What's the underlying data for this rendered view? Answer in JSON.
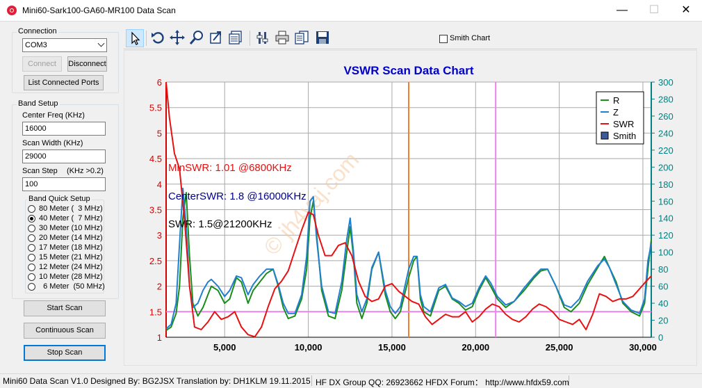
{
  "window": {
    "title": "Mini60-Sark100-GA60-MR100 Data Scan",
    "min_glyph": "—",
    "max_glyph": "☐",
    "close_glyph": "✕"
  },
  "connection": {
    "legend": "Connection",
    "port": "COM3",
    "connect_label": "Connect",
    "disconnect_label": "Disconnect",
    "list_ports_label": "List Connected Ports"
  },
  "band_setup": {
    "legend": "Band Setup",
    "center_freq_label": "Center Freq  (KHz)",
    "center_freq_value": "16000",
    "scan_width_label": "Scan Width   (KHz)",
    "scan_width_value": "29000",
    "scan_step_label": "Scan Step",
    "scan_step_hint": "(KHz >0.2)",
    "scan_step_value": "100",
    "quick_legend": "Band Quick Setup",
    "bands": [
      {
        "label": "80 Meter (  3 MHz)",
        "checked": false
      },
      {
        "label": "40 Meter (  7 MHz)",
        "checked": true
      },
      {
        "label": "30 Meter (10 MHz)",
        "checked": false
      },
      {
        "label": "20 Meter (14 MHz)",
        "checked": false
      },
      {
        "label": "17 Meter (18 MHz)",
        "checked": false
      },
      {
        "label": "15 Meter (21 MHz)",
        "checked": false
      },
      {
        "label": "12 Meter (24 MHz)",
        "checked": false
      },
      {
        "label": "10 Meter (28 MHz)",
        "checked": false
      },
      {
        "label": "  6 Meter  (50 MHz)",
        "checked": false
      }
    ]
  },
  "actions": {
    "start_scan": "Start Scan",
    "continuous_scan": "Continuous Scan",
    "stop_scan": "Stop Scan"
  },
  "toolbar": {
    "smith_chart_label": "Smith Chart",
    "tools": [
      "pointer-icon",
      "undo-icon",
      "pan-icon",
      "zoom-icon",
      "export-icon",
      "data-table-icon",
      "settings-icon",
      "print-icon",
      "copy-icon",
      "save-icon"
    ]
  },
  "colors": {
    "r": "#1a8c1a",
    "z": "#1f7fd0",
    "swr": "#e81010",
    "title": "#0000c8",
    "left_axis": "#d40000",
    "right_axis": "#008080",
    "orange_marker": "#f08030",
    "violet_marker": "#ee82ee",
    "watermark": "#f5c9a0"
  },
  "chart_data": {
    "type": "line",
    "title": "VSWR Scan Data Chart",
    "watermark": "© jh4vaj.com",
    "x_ticks": [
      "5,000",
      "10,000",
      "15,000",
      "20,000",
      "25,000",
      "30,000"
    ],
    "x_tick_values": [
      5000,
      10000,
      15000,
      20000,
      25000,
      30000
    ],
    "xlim": [
      1500,
      30500
    ],
    "y_left_ticks": [
      "1",
      "1.5",
      "2",
      "2.5",
      "3",
      "3.5",
      "4",
      "4.5",
      "5",
      "5.5",
      "6"
    ],
    "y_left_lim": [
      1,
      6
    ],
    "y_right_ticks": [
      "0",
      "20",
      "40",
      "60",
      "80",
      "100",
      "120",
      "140",
      "160",
      "180",
      "200",
      "220",
      "240",
      "260",
      "280",
      "300"
    ],
    "y_right_lim": [
      0,
      300
    ],
    "annotations": [
      {
        "text": "MinSWR: 1.01 @6800KHz",
        "color": "#e81010"
      },
      {
        "text": "CenterSWR: 1.8 @16000KHz",
        "color": "#00008b"
      },
      {
        "text": "SWR: 1.5@21200KHz",
        "color": "#000000"
      }
    ],
    "markers": {
      "center_freq_khz": 16000,
      "swr_freq_khz": 21200,
      "swr_level": 1.5
    },
    "legend_position": "top-right",
    "legend": [
      {
        "name": "R",
        "kind": "line"
      },
      {
        "name": "Z",
        "kind": "line"
      },
      {
        "name": "SWR",
        "kind": "line"
      },
      {
        "name": "Smith",
        "kind": "box"
      }
    ],
    "series": [
      {
        "name": "SWR",
        "axis": "left",
        "x": [
          1500,
          1700,
          2000,
          2300,
          2600,
          2900,
          3200,
          3600,
          4000,
          4400,
          4800,
          5200,
          5600,
          6000,
          6400,
          6800,
          7200,
          7600,
          8000,
          8400,
          8800,
          9200,
          9600,
          10000,
          10300,
          10600,
          11000,
          11400,
          11800,
          12200,
          12600,
          13000,
          13400,
          13800,
          14200,
          14600,
          15000,
          15400,
          15800,
          16200,
          16600,
          17000,
          17400,
          17800,
          18200,
          18600,
          19000,
          19400,
          19800,
          20200,
          20600,
          21000,
          21400,
          21800,
          22200,
          22600,
          23000,
          23400,
          23800,
          24200,
          24600,
          25000,
          25400,
          25800,
          26200,
          26600,
          27000,
          27400,
          27800,
          28200,
          28600,
          29000,
          29400,
          29800,
          30200,
          30500
        ],
        "y": [
          6.0,
          5.3,
          4.6,
          4.3,
          3.3,
          2.0,
          1.2,
          1.15,
          1.3,
          1.5,
          1.35,
          1.4,
          1.5,
          1.2,
          1.05,
          1.01,
          1.2,
          1.6,
          1.95,
          2.1,
          2.3,
          2.7,
          3.1,
          3.45,
          3.4,
          3.0,
          2.6,
          2.6,
          2.8,
          2.85,
          2.6,
          2.1,
          1.8,
          1.7,
          1.75,
          2.0,
          2.05,
          1.9,
          1.8,
          1.7,
          1.65,
          1.4,
          1.25,
          1.35,
          1.45,
          1.4,
          1.4,
          1.5,
          1.3,
          1.4,
          1.55,
          1.65,
          1.6,
          1.45,
          1.35,
          1.3,
          1.4,
          1.55,
          1.65,
          1.6,
          1.5,
          1.35,
          1.3,
          1.25,
          1.35,
          1.15,
          1.45,
          1.85,
          1.8,
          1.7,
          1.75,
          1.75,
          1.8,
          1.95,
          2.1,
          2.2
        ]
      },
      {
        "name": "R",
        "axis": "right",
        "x": [
          1500,
          1800,
          2100,
          2300,
          2500,
          2700,
          2900,
          3100,
          3400,
          3700,
          4000,
          4200,
          4600,
          5000,
          5300,
          5700,
          6000,
          6400,
          6700,
          7100,
          7500,
          7900,
          8200,
          8500,
          8800,
          9200,
          9600,
          9900,
          10100,
          10300,
          10500,
          10800,
          11200,
          11600,
          12000,
          12300,
          12500,
          12700,
          12900,
          13200,
          13500,
          13800,
          14200,
          14600,
          14900,
          15200,
          15500,
          16000,
          16300,
          16500,
          16700,
          16900,
          17300,
          17800,
          18200,
          18600,
          19000,
          19400,
          19800,
          20200,
          20600,
          20900,
          21300,
          21800,
          22300,
          22900,
          23500,
          23900,
          24300,
          24800,
          25300,
          25700,
          26200,
          26700,
          27300,
          27700,
          28000,
          28400,
          28800,
          29300,
          29800,
          30100,
          30300,
          30500
        ],
        "y": [
          8,
          12,
          28,
          60,
          140,
          170,
          95,
          40,
          25,
          35,
          50,
          60,
          55,
          40,
          45,
          70,
          65,
          40,
          55,
          65,
          75,
          80,
          60,
          35,
          22,
          25,
          45,
          80,
          140,
          160,
          120,
          55,
          25,
          22,
          55,
          100,
          130,
          95,
          40,
          22,
          40,
          80,
          100,
          50,
          30,
          22,
          30,
          70,
          90,
          95,
          45,
          30,
          25,
          55,
          60,
          45,
          40,
          32,
          36,
          55,
          70,
          60,
          45,
          35,
          42,
          55,
          70,
          78,
          80,
          60,
          35,
          30,
          40,
          62,
          82,
          95,
          82,
          65,
          40,
          30,
          25,
          40,
          80,
          115
        ]
      },
      {
        "name": "Z",
        "axis": "right",
        "x": [
          1500,
          1800,
          2100,
          2300,
          2500,
          2700,
          2900,
          3100,
          3400,
          3700,
          4000,
          4200,
          4600,
          5000,
          5300,
          5700,
          6000,
          6400,
          6700,
          7100,
          7500,
          7900,
          8200,
          8500,
          8800,
          9200,
          9600,
          9900,
          10100,
          10300,
          10500,
          10800,
          11200,
          11600,
          12000,
          12300,
          12500,
          12700,
          12900,
          13200,
          13500,
          13800,
          14200,
          14600,
          14900,
          15200,
          15500,
          16000,
          16300,
          16500,
          16700,
          16900,
          17300,
          17800,
          18200,
          18600,
          19000,
          19400,
          19800,
          20200,
          20600,
          20900,
          21300,
          21800,
          22300,
          22900,
          23500,
          23900,
          24300,
          24800,
          25300,
          25700,
          26200,
          26700,
          27300,
          27700,
          28000,
          28400,
          28800,
          29300,
          29800,
          30100,
          30300,
          30500
        ],
        "y": [
          10,
          15,
          40,
          110,
          175,
          130,
          60,
          35,
          40,
          55,
          65,
          68,
          60,
          48,
          55,
          72,
          70,
          50,
          62,
          72,
          80,
          80,
          62,
          40,
          28,
          28,
          50,
          95,
          160,
          165,
          115,
          60,
          30,
          28,
          65,
          115,
          140,
          100,
          50,
          30,
          45,
          82,
          100,
          55,
          36,
          28,
          36,
          80,
          95,
          95,
          50,
          36,
          30,
          58,
          62,
          46,
          42,
          36,
          40,
          58,
          72,
          64,
          48,
          38,
          42,
          58,
          72,
          80,
          80,
          60,
          38,
          35,
          45,
          66,
          84,
          92,
          82,
          62,
          42,
          32,
          28,
          45,
          90,
          110
        ]
      }
    ]
  }
}
